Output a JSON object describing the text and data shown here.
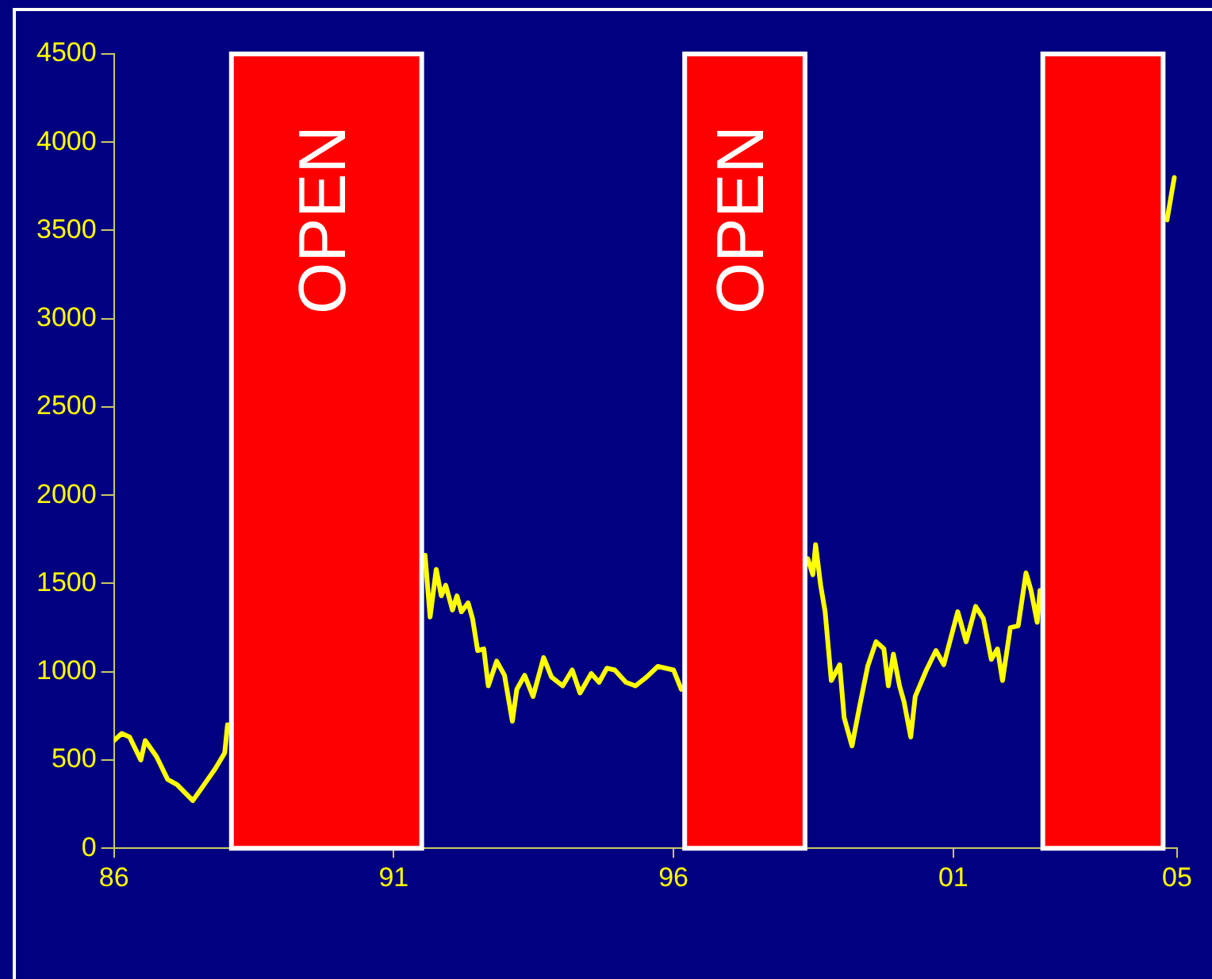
{
  "chart_data": {
    "type": "line",
    "xlim": [
      1986,
      2005
    ],
    "xticks": [
      {
        "value": 1986,
        "label": "86"
      },
      {
        "value": 1991,
        "label": "91"
      },
      {
        "value": 1996,
        "label": "96"
      },
      {
        "value": 2001,
        "label": "01"
      },
      {
        "value": 2005,
        "label": "05"
      }
    ],
    "ylim": [
      0,
      4500
    ],
    "yticks": [
      0,
      500,
      1000,
      1500,
      2000,
      2500,
      3000,
      3500,
      4000,
      4500
    ],
    "grid": false,
    "legend": false,
    "marker": "none",
    "line_style": "solid",
    "series": [
      {
        "color": "#ffff00",
        "x": [
          1986.0,
          1986.14,
          1986.28,
          1986.48,
          1986.56,
          1986.76,
          1986.96,
          1987.13,
          1987.41,
          1987.61,
          1987.81,
          1987.98,
          1988.03,
          1988.1,
          1991.5,
          1991.56,
          1991.65,
          1991.76,
          1991.85,
          1991.93,
          1992.05,
          1992.13,
          1992.21,
          1992.33,
          1992.41,
          1992.5,
          1992.61,
          1992.69,
          1992.84,
          1992.98,
          1993.12,
          1993.2,
          1993.34,
          1993.49,
          1993.68,
          1993.82,
          1994.02,
          1994.19,
          1994.33,
          1994.53,
          1994.67,
          1994.81,
          1994.95,
          1995.15,
          1995.32,
          1995.52,
          1995.72,
          1996.0,
          1996.14,
          1996.2,
          1998.35,
          1998.4,
          1998.49,
          1998.54,
          1998.63,
          1998.71,
          1998.82,
          1998.97,
          1999.05,
          1999.19,
          1999.33,
          1999.47,
          1999.62,
          1999.76,
          1999.84,
          1999.93,
          2000.04,
          2000.12,
          2000.24,
          2000.32,
          2000.52,
          2000.69,
          2000.83,
          2001.08,
          2001.23,
          2001.4,
          2001.54,
          2001.68,
          2001.79,
          2001.88,
          2002.02,
          2002.16,
          2002.3,
          2002.39,
          2002.5,
          2002.55,
          2002.6,
          2004.75,
          2004.82,
          2004.95
        ],
        "values": [
          610,
          650,
          630,
          500,
          610,
          520,
          390,
          360,
          270,
          360,
          450,
          540,
          700,
          null,
          null,
          1660,
          1310,
          1580,
          1430,
          1490,
          1350,
          1430,
          1340,
          1390,
          1300,
          1120,
          1130,
          920,
          1060,
          980,
          720,
          900,
          980,
          860,
          1080,
          970,
          920,
          1010,
          880,
          990,
          940,
          1020,
          1010,
          940,
          920,
          970,
          1030,
          1010,
          900,
          null,
          null,
          1640,
          1550,
          1720,
          1490,
          1340,
          950,
          1040,
          740,
          580,
          810,
          1030,
          1170,
          1130,
          920,
          1100,
          920,
          830,
          630,
          860,
          1010,
          1120,
          1040,
          1340,
          1170,
          1370,
          1300,
          1070,
          1130,
          950,
          1250,
          1260,
          1560,
          1460,
          1280,
          1460,
          null,
          null,
          3560,
          3800
        ]
      }
    ],
    "bands": [
      {
        "axis": "x",
        "from": 1988.1,
        "to": 1991.5,
        "label": "OPEN",
        "color": "#ff0000"
      },
      {
        "axis": "x",
        "from": 1996.2,
        "to": 1998.35,
        "label": "OPEN",
        "color": "#ff0000"
      },
      {
        "axis": "x",
        "from": 2002.6,
        "to": 2004.75,
        "color": "#ff0000"
      }
    ]
  }
}
